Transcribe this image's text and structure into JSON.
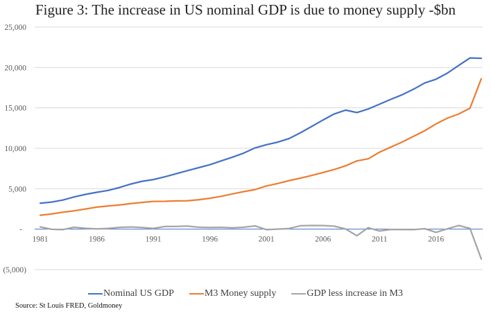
{
  "chart_data": {
    "type": "line",
    "title": "Figure 3: The increase in US nominal GDP is due to money supply -$bn",
    "xlabel": "",
    "ylabel": "",
    "ylim": [
      -5000,
      25000
    ],
    "yticks": [
      25000,
      20000,
      15000,
      10000,
      5000,
      0,
      -5000
    ],
    "ytick_labels": [
      "25,000",
      "20,000",
      "15,000",
      "10,000",
      "5,000",
      "-",
      "(5,000)"
    ],
    "xticks": [
      1981,
      1986,
      1991,
      1996,
      2001,
      2006,
      2011,
      2016
    ],
    "xtick_labels": [
      "1981",
      "1986",
      "1991",
      "1996",
      "2001",
      "2006",
      "2011",
      "2016"
    ],
    "grid": true,
    "legend_position": "bottom",
    "x": [
      1981,
      1982,
      1983,
      1984,
      1985,
      1986,
      1987,
      1988,
      1989,
      1990,
      1991,
      1992,
      1993,
      1994,
      1995,
      1996,
      1997,
      1998,
      1999,
      2000,
      2001,
      2002,
      2003,
      2004,
      2005,
      2006,
      2007,
      2008,
      2009,
      2010,
      2011,
      2012,
      2013,
      2014,
      2015,
      2016,
      2017,
      2018,
      2019,
      2020
    ],
    "series": [
      {
        "name": "Nominal US GDP",
        "color": "#4472C4",
        "values": [
          3210,
          3350,
          3600,
          3980,
          4300,
          4560,
          4790,
          5150,
          5580,
          5920,
          6130,
          6470,
          6850,
          7230,
          7600,
          7970,
          8440,
          8900,
          9410,
          10050,
          10450,
          10760,
          11200,
          11920,
          12700,
          13500,
          14250,
          14720,
          14420,
          14860,
          15450,
          16050,
          16620,
          17300,
          18080,
          18550,
          19300,
          20250,
          21180,
          21130
        ]
      },
      {
        "name": "M3 Money supply",
        "color": "#ED7D31",
        "values": [
          1720,
          1880,
          2090,
          2270,
          2490,
          2720,
          2860,
          3000,
          3160,
          3310,
          3430,
          3440,
          3490,
          3510,
          3640,
          3820,
          4060,
          4360,
          4640,
          4890,
          5350,
          5650,
          6010,
          6310,
          6640,
          7000,
          7380,
          7830,
          8440,
          8700,
          9520,
          10150,
          10770,
          11470,
          12180,
          13020,
          13730,
          14240,
          14960,
          18610
        ]
      },
      {
        "name": "GDP less increase in M3",
        "color": "#A5A5A5",
        "values": [
          280,
          -20,
          -60,
          240,
          100,
          40,
          90,
          220,
          270,
          200,
          90,
          320,
          340,
          380,
          240,
          200,
          230,
          160,
          240,
          400,
          -60,
          10,
          80,
          420,
          450,
          440,
          370,
          20,
          -820,
          180,
          -230,
          -40,
          -50,
          -60,
          60,
          -400,
          40,
          450,
          90,
          -3690
        ]
      }
    ]
  },
  "legend": {
    "items": [
      {
        "label": "Nominal US GDP",
        "color": "#4472C4"
      },
      {
        "label": "M3 Money supply",
        "color": "#ED7D31"
      },
      {
        "label": "GDP less increase in M3",
        "color": "#A5A5A5"
      }
    ]
  },
  "source": "Source: St Louis FRED, Goldmoney"
}
